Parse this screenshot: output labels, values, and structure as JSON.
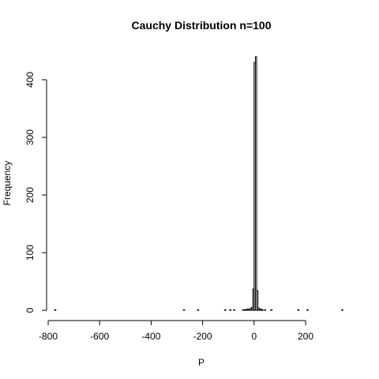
{
  "chart_data": {
    "type": "bar",
    "title": "Cauchy Distribution n=100",
    "xlabel": "P",
    "ylabel": "Frequency",
    "xlim": [
      -800,
      350
    ],
    "ylim": [
      0,
      440
    ],
    "grid": false,
    "x_ticks": [
      -800,
      -600,
      -400,
      -200,
      0,
      200
    ],
    "x_tick_labels": [
      "-800",
      "-600",
      "-400",
      "-200",
      "0",
      "200"
    ],
    "y_ticks": [
      0,
      100,
      200,
      300,
      400
    ],
    "y_tick_labels": [
      "0",
      "100",
      "200",
      "300",
      "400"
    ],
    "bin_width": 5,
    "bins": [
      {
        "x0": -775,
        "x1": -770,
        "count": 1
      },
      {
        "x0": -275,
        "x1": -270,
        "count": 1
      },
      {
        "x0": -220,
        "x1": -215,
        "count": 1
      },
      {
        "x0": -115,
        "x1": -110,
        "count": 1
      },
      {
        "x0": -95,
        "x1": -90,
        "count": 1
      },
      {
        "x0": -80,
        "x1": -75,
        "count": 1
      },
      {
        "x0": -45,
        "x1": -40,
        "count": 1
      },
      {
        "x0": -40,
        "x1": -35,
        "count": 1
      },
      {
        "x0": -35,
        "x1": -30,
        "count": 1
      },
      {
        "x0": -30,
        "x1": -25,
        "count": 2
      },
      {
        "x0": -25,
        "x1": -20,
        "count": 2
      },
      {
        "x0": -20,
        "x1": -15,
        "count": 2
      },
      {
        "x0": -15,
        "x1": -10,
        "count": 3
      },
      {
        "x0": -10,
        "x1": -5,
        "count": 5
      },
      {
        "x0": -5,
        "x1": 0,
        "count": 37
      },
      {
        "x0": 0,
        "x1": 5,
        "count": 430
      },
      {
        "x0": 5,
        "x1": 10,
        "count": 440
      },
      {
        "x0": 10,
        "x1": 15,
        "count": 34
      },
      {
        "x0": 15,
        "x1": 20,
        "count": 4
      },
      {
        "x0": 20,
        "x1": 25,
        "count": 2
      },
      {
        "x0": 25,
        "x1": 30,
        "count": 2
      },
      {
        "x0": 30,
        "x1": 35,
        "count": 1
      },
      {
        "x0": 40,
        "x1": 45,
        "count": 1
      },
      {
        "x0": 65,
        "x1": 70,
        "count": 1
      },
      {
        "x0": 170,
        "x1": 175,
        "count": 1
      },
      {
        "x0": 205,
        "x1": 210,
        "count": 1
      },
      {
        "x0": 340,
        "x1": 345,
        "count": 1
      }
    ]
  }
}
